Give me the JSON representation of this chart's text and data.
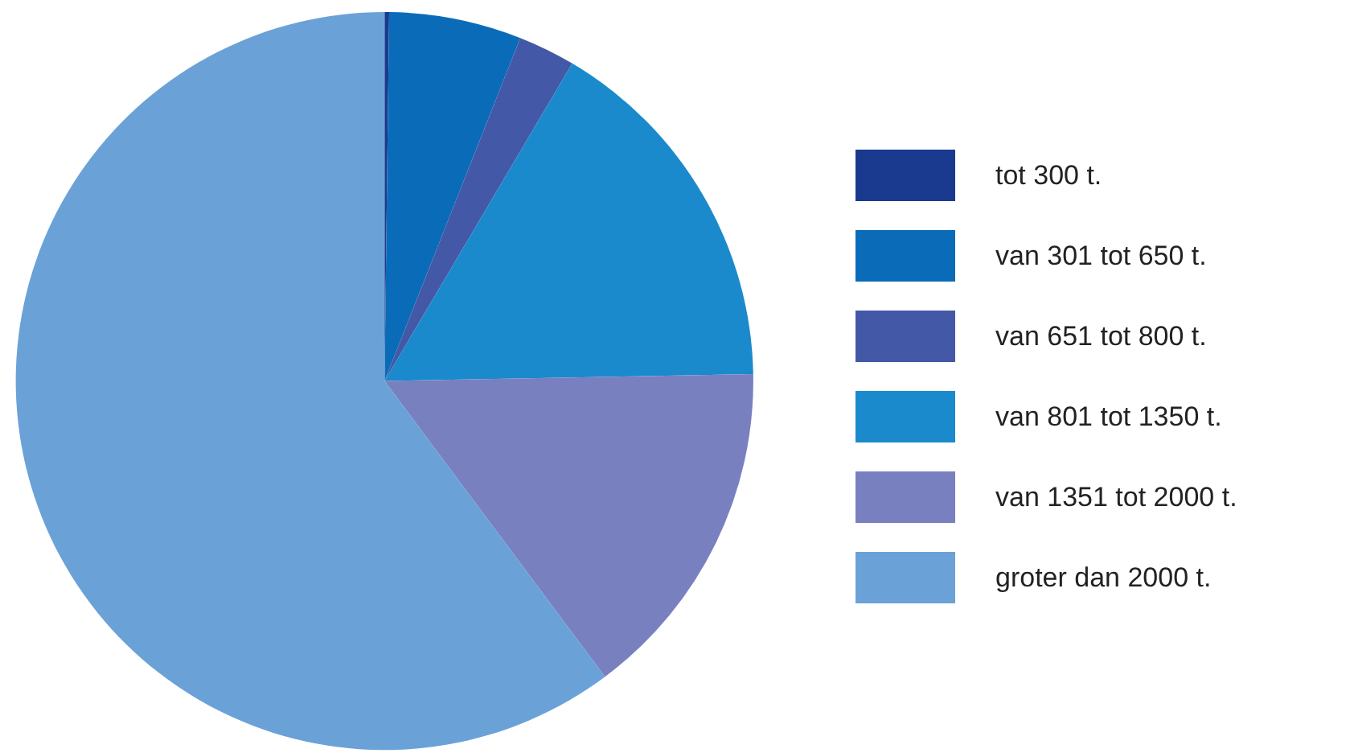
{
  "chart_data": {
    "type": "pie",
    "categories": [
      "tot 300 t.",
      "van 301 tot 650 t.",
      "van 651 tot 800 t.",
      "van 801 tot 1350 t.",
      "van 1351 tot 2000 t.",
      "groter dan 2000 t."
    ],
    "values": [
      0.2,
      5.8,
      2.5,
      16.2,
      15.1,
      60.2
    ],
    "colors": [
      "#1a3a8f",
      "#0a6cb8",
      "#4458a8",
      "#1a8acc",
      "#7880c0",
      "#6aa2d8"
    ],
    "legend": "right"
  }
}
